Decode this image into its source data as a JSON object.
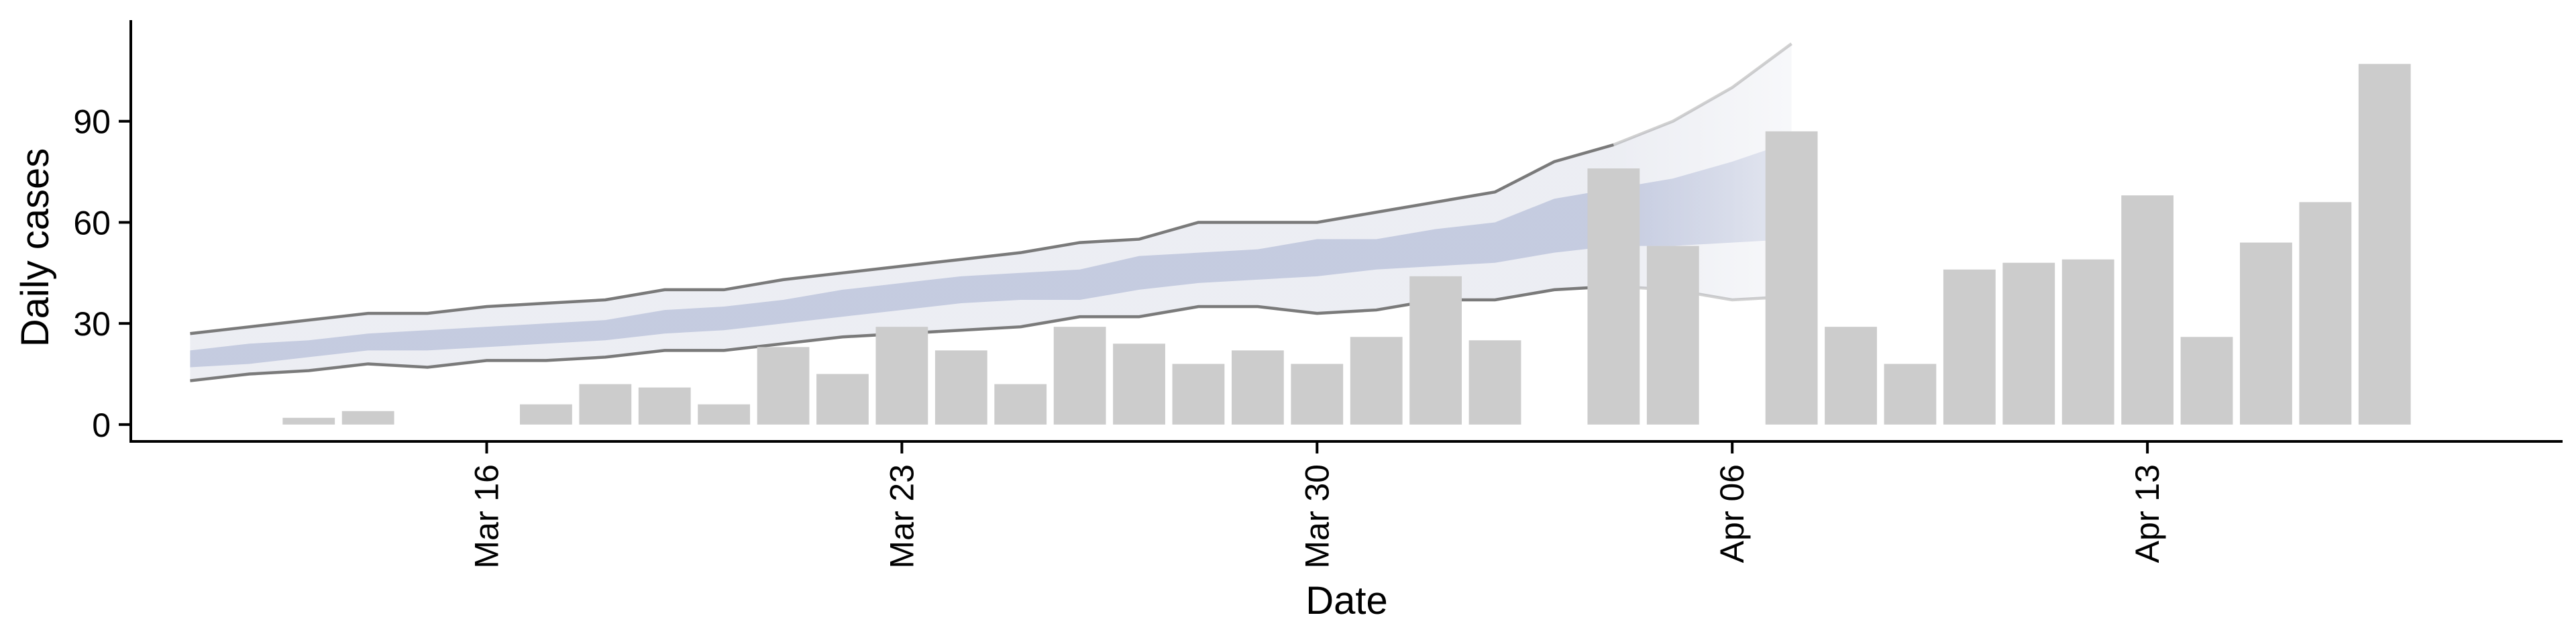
{
  "chart_data": {
    "type": "bar",
    "xlabel": "Date",
    "ylabel": "Daily cases",
    "x_ticks": [
      {
        "date": "2020-03-16",
        "label": "Mar 16"
      },
      {
        "date": "2020-03-23",
        "label": "Mar 23"
      },
      {
        "date": "2020-03-30",
        "label": "Mar 30"
      },
      {
        "date": "2020-04-06",
        "label": "Apr 06"
      },
      {
        "date": "2020-04-13",
        "label": "Apr 13"
      }
    ],
    "y_ticks": [
      0,
      30,
      60,
      90
    ],
    "ylim": [
      -5,
      120
    ],
    "xlim": [
      "2020-03-10",
      "2020-04-20"
    ],
    "grid": false,
    "legend": "none",
    "colors": {
      "bars": "#cccccc",
      "band_outer": "#dcdfe9",
      "band_inner": "#b8c0da",
      "band_line": "#7a7a7a"
    },
    "bars": {
      "dates": [
        "2020-03-13",
        "2020-03-14",
        "2020-03-15",
        "2020-03-16",
        "2020-03-17",
        "2020-03-18",
        "2020-03-19",
        "2020-03-20",
        "2020-03-21",
        "2020-03-22",
        "2020-03-23",
        "2020-03-24",
        "2020-03-25",
        "2020-03-26",
        "2020-03-27",
        "2020-03-28",
        "2020-03-29",
        "2020-03-30",
        "2020-03-31",
        "2020-04-01",
        "2020-04-02",
        "2020-04-03",
        "2020-04-04",
        "2020-04-05",
        "2020-04-06",
        "2020-04-07",
        "2020-04-08",
        "2020-04-09",
        "2020-04-10",
        "2020-04-11",
        "2020-04-12",
        "2020-04-13",
        "2020-04-14",
        "2020-04-15",
        "2020-04-16",
        "2020-04-17",
        "2020-04-18"
      ],
      "values": [
        2,
        4,
        0,
        0,
        6,
        12,
        11,
        6,
        23,
        15,
        29,
        22,
        12,
        29,
        24,
        18,
        22,
        18,
        26,
        44,
        25,
        0,
        76,
        53,
        0,
        87,
        29,
        18,
        46,
        48,
        49,
        68,
        26,
        54,
        66,
        107,
        0
      ]
    },
    "forecast_band": {
      "dates": [
        "2020-03-11",
        "2020-03-12",
        "2020-03-13",
        "2020-03-14",
        "2020-03-15",
        "2020-03-16",
        "2020-03-17",
        "2020-03-18",
        "2020-03-19",
        "2020-03-20",
        "2020-03-21",
        "2020-03-22",
        "2020-03-23",
        "2020-03-24",
        "2020-03-25",
        "2020-03-26",
        "2020-03-27",
        "2020-03-28",
        "2020-03-29",
        "2020-03-30",
        "2020-03-31",
        "2020-04-01",
        "2020-04-02",
        "2020-04-03",
        "2020-04-04",
        "2020-04-05",
        "2020-04-06",
        "2020-04-07",
        "2020-04-08"
      ],
      "upper90": [
        27,
        29,
        31,
        33,
        33,
        35,
        36,
        37,
        40,
        40,
        43,
        45,
        47,
        49,
        51,
        54,
        55,
        60,
        60,
        60,
        63,
        66,
        69,
        78,
        83,
        90,
        100,
        113,
        null
      ],
      "upper50": [
        22,
        24,
        25,
        27,
        28,
        29,
        30,
        31,
        34,
        35,
        37,
        40,
        42,
        44,
        45,
        46,
        50,
        51,
        52,
        55,
        55,
        58,
        60,
        67,
        70,
        73,
        78,
        84,
        null
      ],
      "lower50": [
        17,
        18,
        20,
        22,
        22,
        23,
        24,
        25,
        27,
        28,
        30,
        32,
        34,
        36,
        37,
        37,
        40,
        42,
        43,
        44,
        46,
        47,
        48,
        51,
        53,
        53,
        54,
        55,
        null
      ],
      "lower90": [
        13,
        15,
        16,
        18,
        17,
        19,
        19,
        20,
        22,
        22,
        24,
        26,
        27,
        28,
        29,
        32,
        32,
        35,
        35,
        33,
        34,
        37,
        37,
        40,
        41,
        40,
        37,
        38,
        null
      ],
      "faded_from": "2020-04-04"
    }
  }
}
